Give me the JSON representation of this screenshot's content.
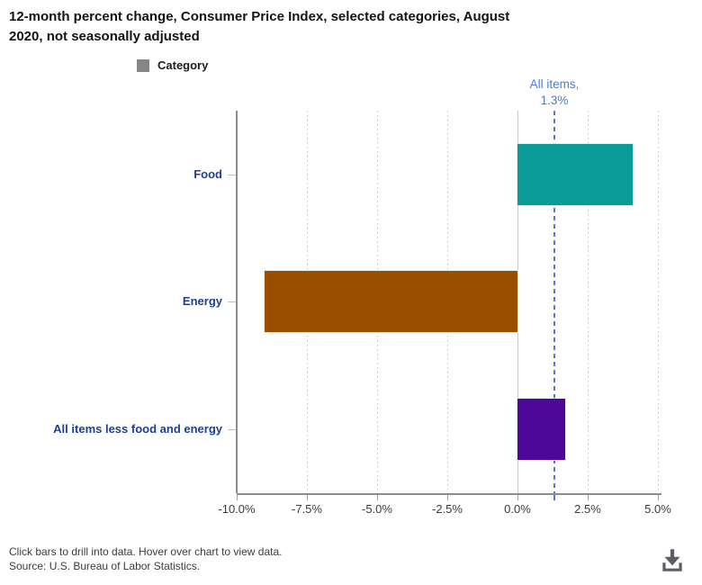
{
  "title_lines": [
    "12-month percent change, Consumer Price Index, selected categories, August",
    "2020, not seasonally adjusted"
  ],
  "legend": {
    "label": "Category",
    "swatch_color": "#868686"
  },
  "footer": {
    "note": "Click bars to drill into data. Hover over chart to view data.",
    "source": "Source: U.S. Bureau of Labor Statistics."
  },
  "chart_data": {
    "type": "bar",
    "orientation": "horizontal",
    "title": "12-month percent change, Consumer Price Index, selected categories, August 2020, not seasonally adjusted",
    "categories": [
      "Food",
      "Energy",
      "All items less food and energy"
    ],
    "values": [
      4.1,
      -9.0,
      1.7
    ],
    "bar_colors": [
      "#0b9a98",
      "#9a4e00",
      "#4c0999"
    ],
    "category_label_color": "#1c3f94",
    "xlim": [
      -10.0,
      5.0
    ],
    "x_ticks": [
      -10.0,
      -7.5,
      -5.0,
      -2.5,
      0.0,
      2.5,
      5.0
    ],
    "x_tick_labels": [
      "-10.0%",
      "-7.5%",
      "-5.0%",
      "-2.5%",
      "0.0%",
      "2.5%",
      "5.0%"
    ],
    "xlabel": "",
    "ylabel": "",
    "grid": "vertical-dotted",
    "legend_position": "top",
    "reference_line": {
      "value": 1.3,
      "label_line1": "All items,",
      "label_line2": "1.3%",
      "color": "#4a7dd8"
    }
  }
}
